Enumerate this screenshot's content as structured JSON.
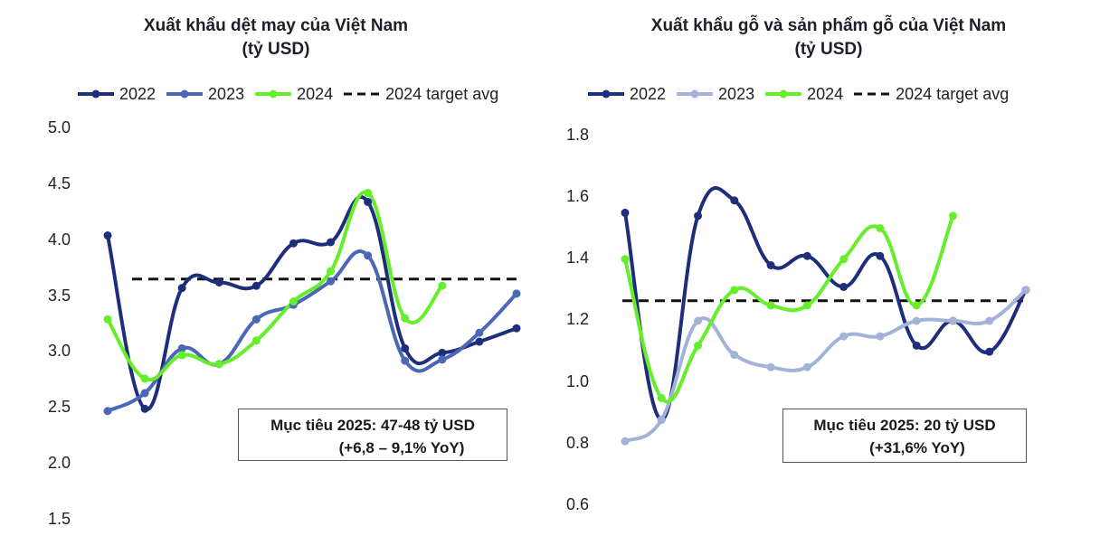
{
  "chart_data": [
    {
      "type": "line",
      "title": "Xuất khẩu dệt may của Việt Nam",
      "subtitle": "(tỷ USD)",
      "xlabel": "",
      "ylabel": "",
      "ylim": [
        1.5,
        5.0
      ],
      "yticks": [
        "5.0",
        "4.5",
        "4.0",
        "3.5",
        "3.0",
        "2.5",
        "2.0",
        "1.5"
      ],
      "x": [
        1,
        2,
        3,
        4,
        5,
        6,
        7,
        8,
        9,
        10,
        11,
        12
      ],
      "legend_position": "top",
      "series": [
        {
          "name": "2022",
          "color": "#1f2e7a",
          "marker": true,
          "values": [
            4.05,
            2.5,
            3.58,
            3.63,
            3.6,
            3.98,
            3.99,
            4.35,
            3.04,
            3.0,
            3.1,
            3.22
          ]
        },
        {
          "name": "2023",
          "color": "#4a67b8",
          "marker": true,
          "values": [
            2.48,
            2.64,
            3.04,
            2.9,
            3.3,
            3.43,
            3.64,
            3.87,
            2.93,
            2.94,
            3.18,
            3.53
          ]
        },
        {
          "name": "2024",
          "color": "#66ee2a",
          "marker": true,
          "values": [
            3.3,
            2.77,
            2.98,
            2.9,
            3.11,
            3.46,
            3.73,
            4.43,
            3.31,
            3.6,
            null,
            null
          ]
        }
      ],
      "reference_line": {
        "name": "2024 target avg",
        "value": 3.66,
        "color": "#111111",
        "style": "dashed"
      },
      "annotation": {
        "line1": "Mục tiêu 2025: 47-48 tỷ USD",
        "line2": "(+6,8 – 9,1% YoY)"
      }
    },
    {
      "type": "line",
      "title": "Xuất khẩu gỗ và sản phẩm gỗ của Việt Nam",
      "subtitle": "(tỷ USD)",
      "xlabel": "",
      "ylabel": "",
      "ylim": [
        0.6,
        1.8
      ],
      "yticks": [
        "1.8",
        "1.6",
        "1.4",
        "1.2",
        "1.0",
        "0.8",
        "0.6"
      ],
      "x": [
        1,
        2,
        3,
        4,
        5,
        6,
        7,
        8,
        9,
        10,
        11,
        12
      ],
      "legend_position": "top",
      "series": [
        {
          "name": "2022",
          "color": "#1f2e7a",
          "marker": true,
          "values": [
            1.55,
            0.88,
            1.54,
            1.59,
            1.38,
            1.41,
            1.31,
            1.41,
            1.12,
            1.2,
            1.1,
            1.3
          ]
        },
        {
          "name": "2023",
          "color": "#a3b3d8",
          "marker": true,
          "values": [
            0.81,
            0.88,
            1.2,
            1.09,
            1.05,
            1.05,
            1.15,
            1.15,
            1.2,
            1.2,
            1.2,
            1.3
          ]
        },
        {
          "name": "2024",
          "color": "#66ee2a",
          "marker": true,
          "values": [
            1.4,
            0.95,
            1.12,
            1.3,
            1.25,
            1.25,
            1.4,
            1.5,
            1.25,
            1.54,
            null,
            null
          ]
        }
      ],
      "reference_line": {
        "name": "2024 target avg",
        "value": 1.265,
        "color": "#111111",
        "style": "dashed"
      },
      "annotation": {
        "line1": "Mục tiêu 2025: 20 tỷ USD",
        "line2": "(+31,6% YoY)"
      }
    }
  ]
}
